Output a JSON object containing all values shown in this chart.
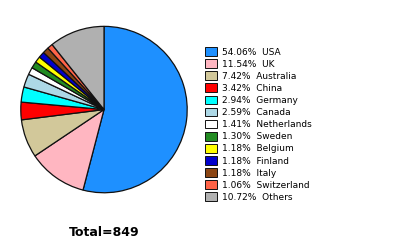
{
  "labels": [
    "USA",
    "UK",
    "Australia",
    "China",
    "Germany",
    "Canada",
    "Netherlands",
    "Sweden",
    "Belgium",
    "Finland",
    "Italy",
    "Switzerland",
    "Others"
  ],
  "percentages": [
    54.06,
    11.54,
    7.42,
    3.42,
    2.94,
    2.59,
    1.41,
    1.3,
    1.18,
    1.18,
    1.18,
    1.06,
    10.72
  ],
  "colors": [
    "#1E90FF",
    "#FFB6C1",
    "#D2C89A",
    "#FF0000",
    "#00FFFF",
    "#ADD8E6",
    "#FFFFFF",
    "#228B22",
    "#FFFF00",
    "#0000CD",
    "#8B4513",
    "#FF6347",
    "#B0B0B0"
  ],
  "legend_labels": [
    "54.06%  USA",
    "11.54%  UK",
    "7.42%  Australia",
    "3.42%  China",
    "2.94%  Germany",
    "2.59%  Canada",
    "1.41%  Netherlands",
    "1.30%  Sweden",
    "1.18%  Belgium",
    "1.18%  Finland",
    "1.18%  Italy",
    "1.06%  Switzerland",
    "10.72%  Others"
  ],
  "total_label": "Total=849",
  "edge_color": "#111111",
  "fig_width": 4.0,
  "fig_height": 2.49,
  "dpi": 100
}
